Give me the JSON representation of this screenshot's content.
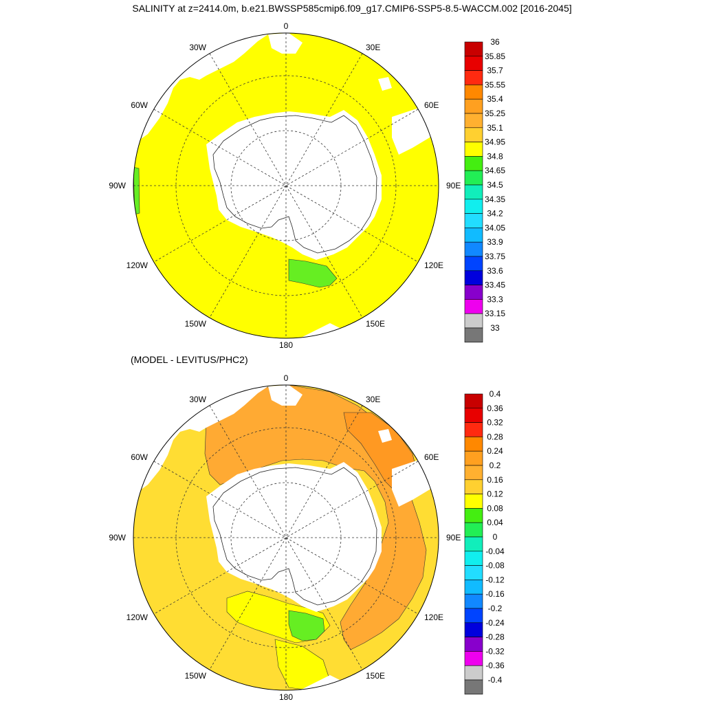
{
  "title": "SALINITY at z=2414.0m, b.e21.BWSSP585cmip6.f09_g17.CMIP6-SSP5-8.5-WACCM.002 [2016-2045]",
  "subtitle": "(MODEL - LEVITUS/PHC2)",
  "lon_labels": [
    "0",
    "30E",
    "60E",
    "90E",
    "120E",
    "150E",
    "180",
    "150W",
    "120W",
    "90W",
    "60W",
    "30W"
  ],
  "colors": {
    "land": "#ffffff",
    "ocean_top": "#ffff00",
    "green": "#66ee22",
    "orange_light": "#ffaa33",
    "orange_dark": "#ff9922",
    "yellow_lt": "#ffdd33"
  },
  "top_colorbar": {
    "labels": [
      "36",
      "35.85",
      "35.7",
      "35.55",
      "35.4",
      "35.25",
      "35.1",
      "34.95",
      "34.8",
      "34.65",
      "34.5",
      "34.35",
      "34.2",
      "34.05",
      "33.9",
      "33.75",
      "33.6",
      "33.45",
      "33.3",
      "33.15",
      "33"
    ],
    "colors": [
      "#c80000",
      "#e80000",
      "#ff2a10",
      "#ff8800",
      "#ffa020",
      "#ffb030",
      "#ffd030",
      "#ffff00",
      "#44ee11",
      "#22ee55",
      "#11eebb",
      "#11eeee",
      "#22ddff",
      "#11bbff",
      "#1188ff",
      "#0044ff",
      "#0000dd",
      "#8800cc",
      "#ee00ee",
      "#cccccc",
      "#777777"
    ]
  },
  "bottom_colorbar": {
    "labels": [
      "0.4",
      "0.36",
      "0.32",
      "0.28",
      "0.24",
      "0.2",
      "0.16",
      "0.12",
      "0.08",
      "0.04",
      "0",
      "-0.04",
      "-0.08",
      "-0.12",
      "-0.16",
      "-0.2",
      "-0.24",
      "-0.28",
      "-0.32",
      "-0.36",
      "-0.4"
    ],
    "colors": [
      "#c80000",
      "#e80000",
      "#ff2a10",
      "#ff8800",
      "#ffa020",
      "#ffb030",
      "#ffd030",
      "#ffff00",
      "#44ee11",
      "#22ee55",
      "#11eebb",
      "#11eeee",
      "#22ddff",
      "#11bbff",
      "#1188ff",
      "#0044ff",
      "#0000dd",
      "#8800cc",
      "#ee00ee",
      "#cccccc",
      "#777777"
    ]
  }
}
